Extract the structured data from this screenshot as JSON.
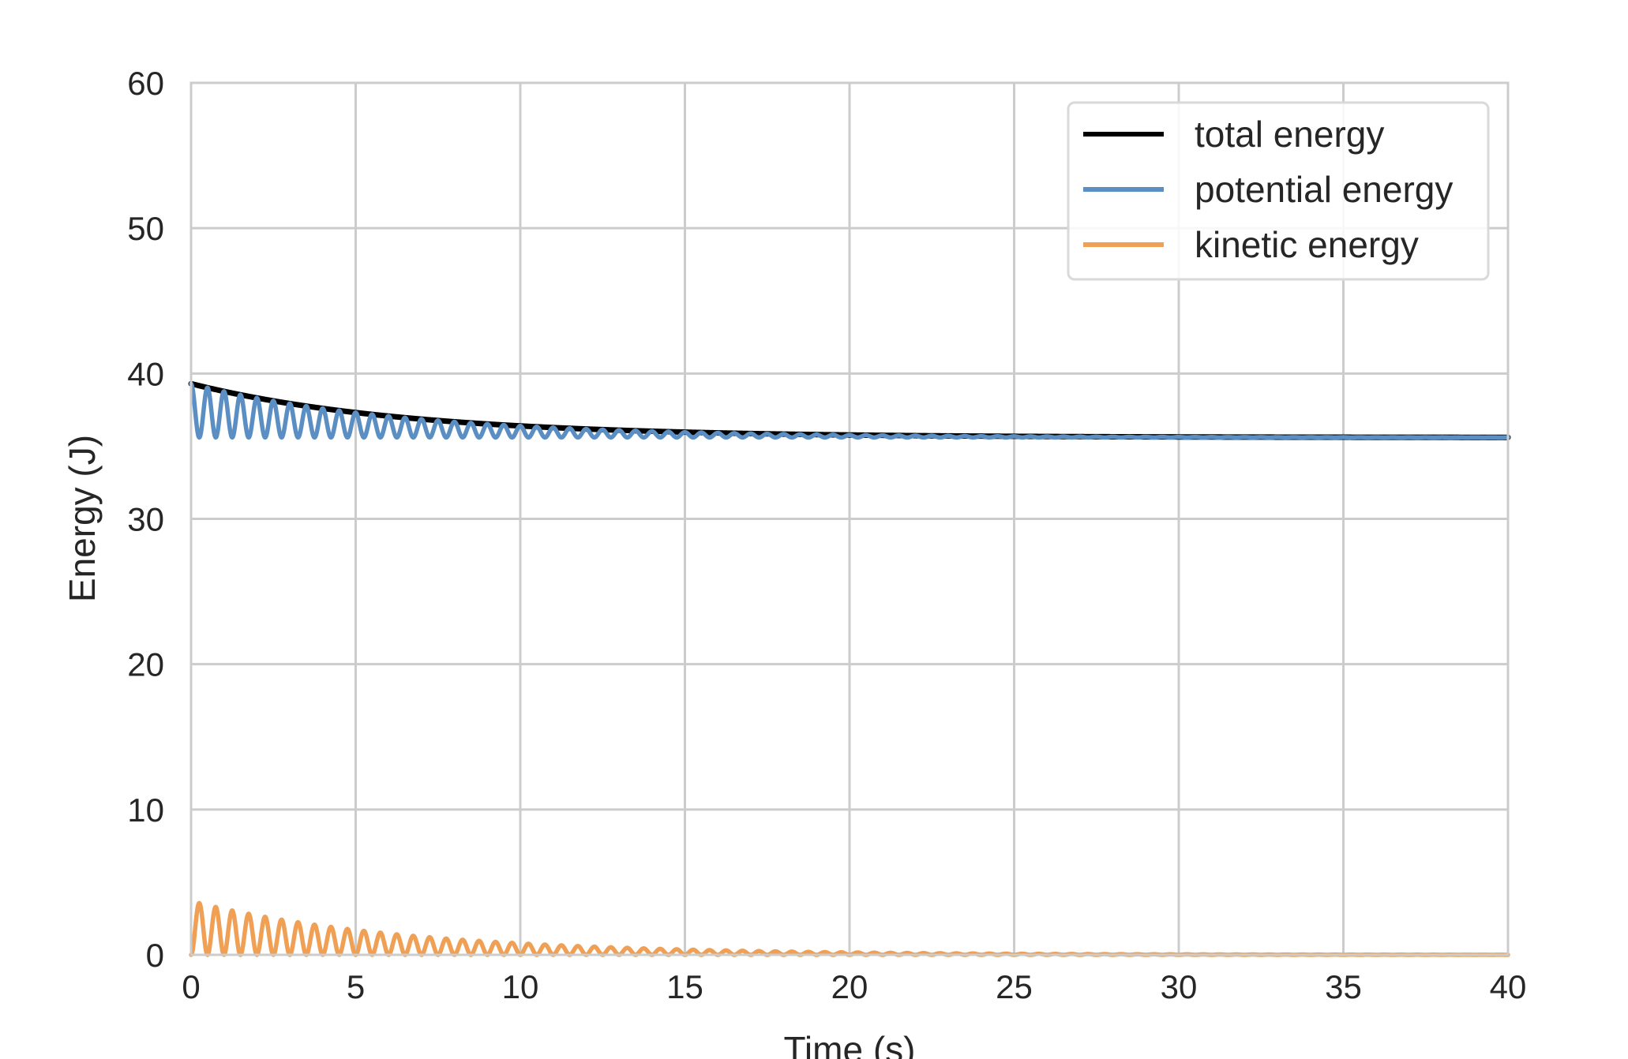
{
  "chart_data": {
    "type": "line",
    "title": "",
    "xlabel": "Time (s)",
    "ylabel": "Energy (J)",
    "xlim": [
      0,
      40
    ],
    "ylim": [
      0,
      60
    ],
    "xticks": [
      0,
      5,
      10,
      15,
      20,
      25,
      30,
      35,
      40
    ],
    "yticks": [
      0,
      10,
      20,
      30,
      40,
      50,
      60
    ],
    "grid": true,
    "legend_position": "top-right",
    "oscillation_period_s": 0.5,
    "series": [
      {
        "name": "total energy",
        "color": "#000000",
        "equilibrium": 35.6,
        "initial_excess": 3.7,
        "decay_time_s": 6.5
      },
      {
        "name": "potential energy",
        "color": "#5b8fc3",
        "equilibrium": 35.6,
        "initial_excess": 3.7,
        "decay_time_s": 6.5
      },
      {
        "name": "kinetic energy",
        "color": "#f0a055",
        "equilibrium": 0,
        "initial_excess": 3.7,
        "decay_time_s": 6.5
      }
    ]
  }
}
